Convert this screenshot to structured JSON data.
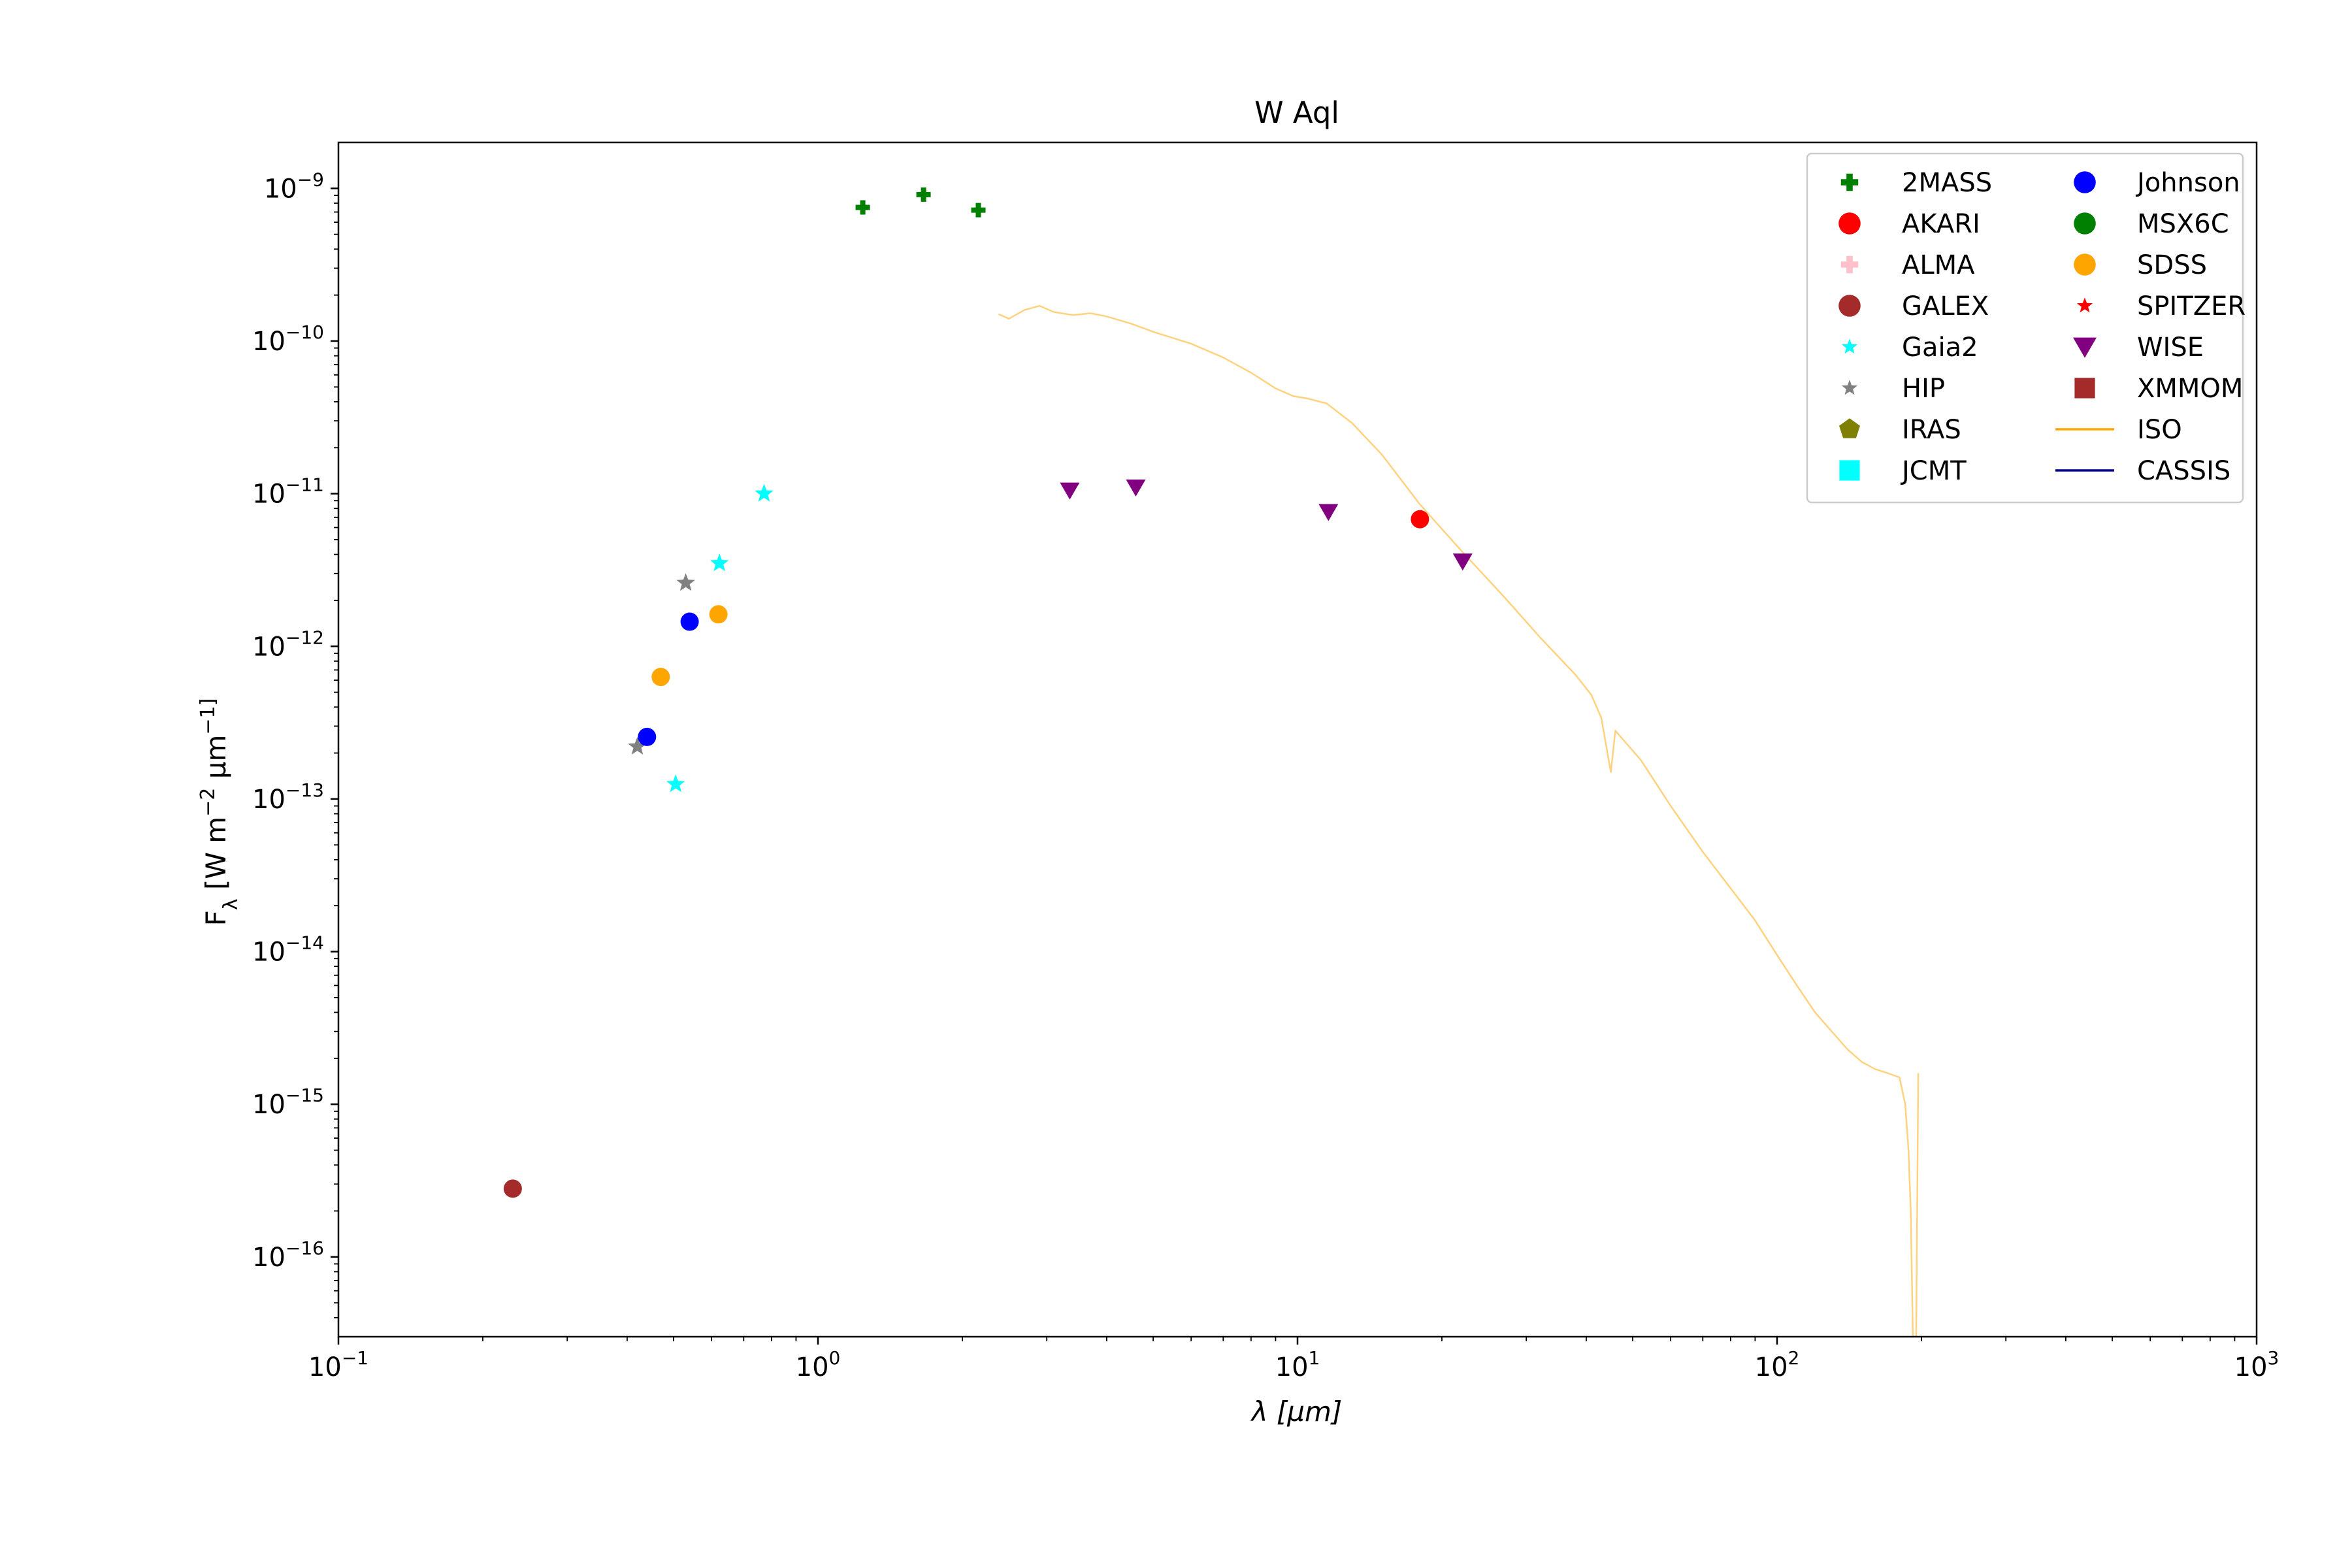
{
  "chart_data": {
    "type": "scatter",
    "title": "W Aql",
    "xlabel": "λ [μm]",
    "ylabel": "F_λ [W m^-2 μm^-1]",
    "xscale": "log",
    "yscale": "log",
    "xlim": [
      0.1,
      1000
    ],
    "ylim": [
      3e-17,
      2e-09
    ],
    "x_ticks": [
      {
        "value": 0.1,
        "base": "10",
        "exp": "−1"
      },
      {
        "value": 1,
        "base": "10",
        "exp": "0"
      },
      {
        "value": 10,
        "base": "10",
        "exp": "1"
      },
      {
        "value": 100,
        "base": "10",
        "exp": "2"
      },
      {
        "value": 1000,
        "base": "10",
        "exp": "3"
      }
    ],
    "y_ticks": [
      {
        "value": 1e-16,
        "base": "10",
        "exp": "−16"
      },
      {
        "value": 1e-15,
        "base": "10",
        "exp": "−15"
      },
      {
        "value": 1e-14,
        "base": "10",
        "exp": "−14"
      },
      {
        "value": 1e-13,
        "base": "10",
        "exp": "−13"
      },
      {
        "value": 1e-12,
        "base": "10",
        "exp": "−12"
      },
      {
        "value": 1e-11,
        "base": "10",
        "exp": "−11"
      },
      {
        "value": 1e-10,
        "base": "10",
        "exp": "−10"
      },
      {
        "value": 1e-09,
        "base": "10",
        "exp": "−9"
      }
    ],
    "grid": false,
    "legend_position": "top-right",
    "legend_columns": 2,
    "series": [
      {
        "name": "2MASS",
        "marker": "plus",
        "color": "#008000",
        "points": [
          [
            1.24,
            7.5e-10
          ],
          [
            1.66,
            9.1e-10
          ],
          [
            2.16,
            7.2e-10
          ]
        ]
      },
      {
        "name": "AKARI",
        "marker": "circle",
        "color": "#ff0000",
        "points": [
          [
            18.0,
            6.8e-12
          ]
        ]
      },
      {
        "name": "ALMA",
        "marker": "plus",
        "color": "#ffc0cb",
        "points": []
      },
      {
        "name": "GALEX",
        "marker": "circle",
        "color": "#a52a2a",
        "points": [
          [
            0.231,
            2.8e-16
          ]
        ]
      },
      {
        "name": "Gaia2",
        "marker": "star",
        "color": "#00ffff",
        "points": [
          [
            0.505,
            1.25e-13
          ],
          [
            0.623,
            3.5e-12
          ],
          [
            0.772,
            1e-11
          ]
        ]
      },
      {
        "name": "HIP",
        "marker": "star",
        "color": "#808080",
        "points": [
          [
            0.42,
            2.2e-13
          ],
          [
            0.53,
            2.6e-12
          ]
        ]
      },
      {
        "name": "IRAS",
        "marker": "pentagon",
        "color": "#808000",
        "points": []
      },
      {
        "name": "JCMT",
        "marker": "square",
        "color": "#00ffff",
        "points": []
      },
      {
        "name": "Johnson",
        "marker": "circle",
        "color": "#0000ff",
        "points": [
          [
            0.44,
            2.55e-13
          ],
          [
            0.54,
            1.45e-12
          ]
        ]
      },
      {
        "name": "MSX6C",
        "marker": "circle",
        "color": "#008000",
        "points": []
      },
      {
        "name": "SDSS",
        "marker": "circle",
        "color": "#ffa500",
        "points": [
          [
            0.47,
            6.3e-13
          ],
          [
            0.62,
            1.62e-12
          ]
        ]
      },
      {
        "name": "SPITZER",
        "marker": "star",
        "color": "#ff0000",
        "points": []
      },
      {
        "name": "WISE",
        "marker": "triangle-down",
        "color": "#800080",
        "points": [
          [
            3.35,
            1.05e-11
          ],
          [
            4.6,
            1.1e-11
          ],
          [
            11.6,
            7.6e-12
          ],
          [
            22.1,
            3.6e-12
          ]
        ]
      },
      {
        "name": "XMMOM",
        "marker": "square",
        "color": "#a52a2a",
        "points": []
      },
      {
        "name": "ISO",
        "marker": "line",
        "color": "#ffa500",
        "points": [
          [
            2.38,
            1.5e-10
          ],
          [
            2.5,
            1.4e-10
          ],
          [
            2.7,
            1.6e-10
          ],
          [
            2.9,
            1.7e-10
          ],
          [
            3.1,
            1.55e-10
          ],
          [
            3.4,
            1.48e-10
          ],
          [
            3.7,
            1.52e-10
          ],
          [
            4.0,
            1.45e-10
          ],
          [
            4.5,
            1.3e-10
          ],
          [
            5.0,
            1.15e-10
          ],
          [
            6.0,
            9.6e-11
          ],
          [
            7.0,
            7.8e-11
          ],
          [
            8.0,
            6.2e-11
          ],
          [
            9.0,
            4.9e-11
          ],
          [
            9.8,
            4.35e-11
          ],
          [
            10.5,
            4.2e-11
          ],
          [
            11.5,
            3.9e-11
          ],
          [
            13.0,
            2.9e-11
          ],
          [
            15.0,
            1.8e-11
          ],
          [
            18.0,
            8.5e-12
          ],
          [
            22.0,
            4.2e-12
          ],
          [
            27.0,
            2.1e-12
          ],
          [
            32.0,
            1.15e-12
          ],
          [
            38.0,
            6.5e-13
          ],
          [
            41.0,
            4.8e-13
          ],
          [
            43.0,
            3.4e-13
          ],
          [
            45.0,
            1.5e-13
          ],
          [
            46.0,
            2.8e-13
          ],
          [
            52.0,
            1.8e-13
          ],
          [
            60.0,
            9e-14
          ],
          [
            70.0,
            4.5e-14
          ],
          [
            80.0,
            2.6e-14
          ],
          [
            90.0,
            1.6e-14
          ],
          [
            100.0,
            9.5e-15
          ],
          [
            110.0,
            6e-15
          ],
          [
            120.0,
            4e-15
          ],
          [
            130.0,
            3e-15
          ],
          [
            140.0,
            2.3e-15
          ],
          [
            150.0,
            1.9e-15
          ],
          [
            160.0,
            1.7e-15
          ],
          [
            170.0,
            1.6e-15
          ],
          [
            180.0,
            1.5e-15
          ],
          [
            185.0,
            1e-15
          ],
          [
            188.0,
            5e-16
          ],
          [
            190.0,
            2e-16
          ],
          [
            192.0,
            3e-17
          ],
          [
            195.0,
            3e-17
          ],
          [
            197.0,
            1.6e-15
          ]
        ]
      },
      {
        "name": "CASSIS",
        "marker": "line",
        "color": "#00008b",
        "points": []
      }
    ]
  }
}
